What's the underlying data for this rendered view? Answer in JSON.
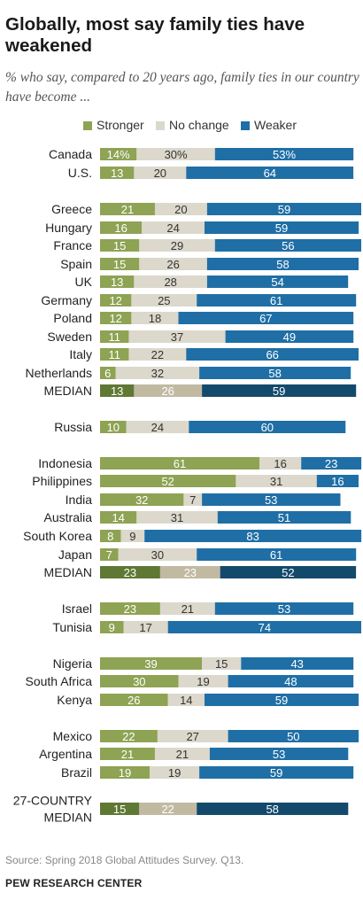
{
  "title": "Globally, most say family ties have weakened",
  "subtitle": "% who say, compared to 20 years ago, family ties in our country have become ...",
  "source": "Source: Spring 2018 Global Attitudes Survey. Q13.",
  "organization": "PEW RESEARCH CENTER",
  "legend": [
    {
      "label": "Stronger",
      "color": "#8ea353"
    },
    {
      "label": "No change",
      "color": "#dcd8cc"
    },
    {
      "label": "Weaker",
      "color": "#1f6fa6"
    }
  ],
  "median_colors": {
    "stronger": "#5f7834",
    "no_change": "#c1b9a2",
    "weaker": "#134a6c"
  },
  "chart_data": {
    "type": "bar",
    "stacked": true,
    "orientation": "horizontal",
    "series_names": [
      "Stronger",
      "No change",
      "Weaker"
    ],
    "rows": [
      {
        "label": "Canada",
        "values": [
          14,
          30,
          53
        ],
        "labels": [
          "14%",
          "30%",
          "53%"
        ],
        "median": false
      },
      {
        "label": "U.S.",
        "values": [
          13,
          20,
          64
        ],
        "labels": [
          "13",
          "20",
          "64"
        ],
        "median": false
      },
      {
        "label": "Greece",
        "values": [
          21,
          20,
          59
        ],
        "labels": [
          "21",
          "20",
          "59"
        ],
        "median": false
      },
      {
        "label": "Hungary",
        "values": [
          16,
          24,
          59
        ],
        "labels": [
          "16",
          "24",
          "59"
        ],
        "median": false
      },
      {
        "label": "France",
        "values": [
          15,
          29,
          56
        ],
        "labels": [
          "15",
          "29",
          "56"
        ],
        "median": false
      },
      {
        "label": "Spain",
        "values": [
          15,
          26,
          58
        ],
        "labels": [
          "15",
          "26",
          "58"
        ],
        "median": false
      },
      {
        "label": "UK",
        "values": [
          13,
          28,
          54
        ],
        "labels": [
          "13",
          "28",
          "54"
        ],
        "median": false
      },
      {
        "label": "Germany",
        "values": [
          12,
          25,
          61
        ],
        "labels": [
          "12",
          "25",
          "61"
        ],
        "median": false
      },
      {
        "label": "Poland",
        "values": [
          12,
          18,
          67
        ],
        "labels": [
          "12",
          "18",
          "67"
        ],
        "median": false
      },
      {
        "label": "Sweden",
        "values": [
          11,
          37,
          49
        ],
        "labels": [
          "11",
          "37",
          "49"
        ],
        "median": false
      },
      {
        "label": "Italy",
        "values": [
          11,
          22,
          66
        ],
        "labels": [
          "11",
          "22",
          "66"
        ],
        "median": false
      },
      {
        "label": "Netherlands",
        "values": [
          6,
          32,
          58
        ],
        "labels": [
          "6",
          "32",
          "58"
        ],
        "median": false
      },
      {
        "label": "MEDIAN",
        "values": [
          13,
          26,
          59
        ],
        "labels": [
          "13",
          "26",
          "59"
        ],
        "median": true
      },
      {
        "label": "Russia",
        "values": [
          10,
          24,
          60
        ],
        "labels": [
          "10",
          "24",
          "60"
        ],
        "median": false
      },
      {
        "label": "Indonesia",
        "values": [
          61,
          16,
          23
        ],
        "labels": [
          "61",
          "16",
          "23"
        ],
        "median": false
      },
      {
        "label": "Philippines",
        "values": [
          52,
          31,
          16
        ],
        "labels": [
          "52",
          "31",
          "16"
        ],
        "median": false
      },
      {
        "label": "India",
        "values": [
          32,
          7,
          53
        ],
        "labels": [
          "32",
          "7",
          "53"
        ],
        "median": false
      },
      {
        "label": "Australia",
        "values": [
          14,
          31,
          51
        ],
        "labels": [
          "14",
          "31",
          "51"
        ],
        "median": false
      },
      {
        "label": "South Korea",
        "values": [
          8,
          9,
          83
        ],
        "labels": [
          "8",
          "9",
          "83"
        ],
        "median": false
      },
      {
        "label": "Japan",
        "values": [
          7,
          30,
          61
        ],
        "labels": [
          "7",
          "30",
          "61"
        ],
        "median": false
      },
      {
        "label": "MEDIAN",
        "values": [
          23,
          23,
          52
        ],
        "labels": [
          "23",
          "23",
          "52"
        ],
        "median": true
      },
      {
        "label": "Israel",
        "values": [
          23,
          21,
          53
        ],
        "labels": [
          "23",
          "21",
          "53"
        ],
        "median": false
      },
      {
        "label": "Tunisia",
        "values": [
          9,
          17,
          74
        ],
        "labels": [
          "9",
          "17",
          "74"
        ],
        "median": false
      },
      {
        "label": "Nigeria",
        "values": [
          39,
          15,
          43
        ],
        "labels": [
          "39",
          "15",
          "43"
        ],
        "median": false
      },
      {
        "label": "South Africa",
        "values": [
          30,
          19,
          48
        ],
        "labels": [
          "30",
          "19",
          "48"
        ],
        "median": false
      },
      {
        "label": "Kenya",
        "values": [
          26,
          14,
          59
        ],
        "labels": [
          "26",
          "14",
          "59"
        ],
        "median": false
      },
      {
        "label": "Mexico",
        "values": [
          22,
          27,
          50
        ],
        "labels": [
          "22",
          "27",
          "50"
        ],
        "median": false
      },
      {
        "label": "Argentina",
        "values": [
          21,
          21,
          53
        ],
        "labels": [
          "21",
          "21",
          "53"
        ],
        "median": false
      },
      {
        "label": "Brazil",
        "values": [
          19,
          19,
          59
        ],
        "labels": [
          "19",
          "19",
          "59"
        ],
        "median": false
      },
      {
        "label": "27-COUNTRY MEDIAN",
        "label_lines": [
          "27-COUNTRY",
          "MEDIAN"
        ],
        "values": [
          15,
          22,
          58
        ],
        "labels": [
          "15",
          "22",
          "58"
        ],
        "median": true
      }
    ]
  }
}
